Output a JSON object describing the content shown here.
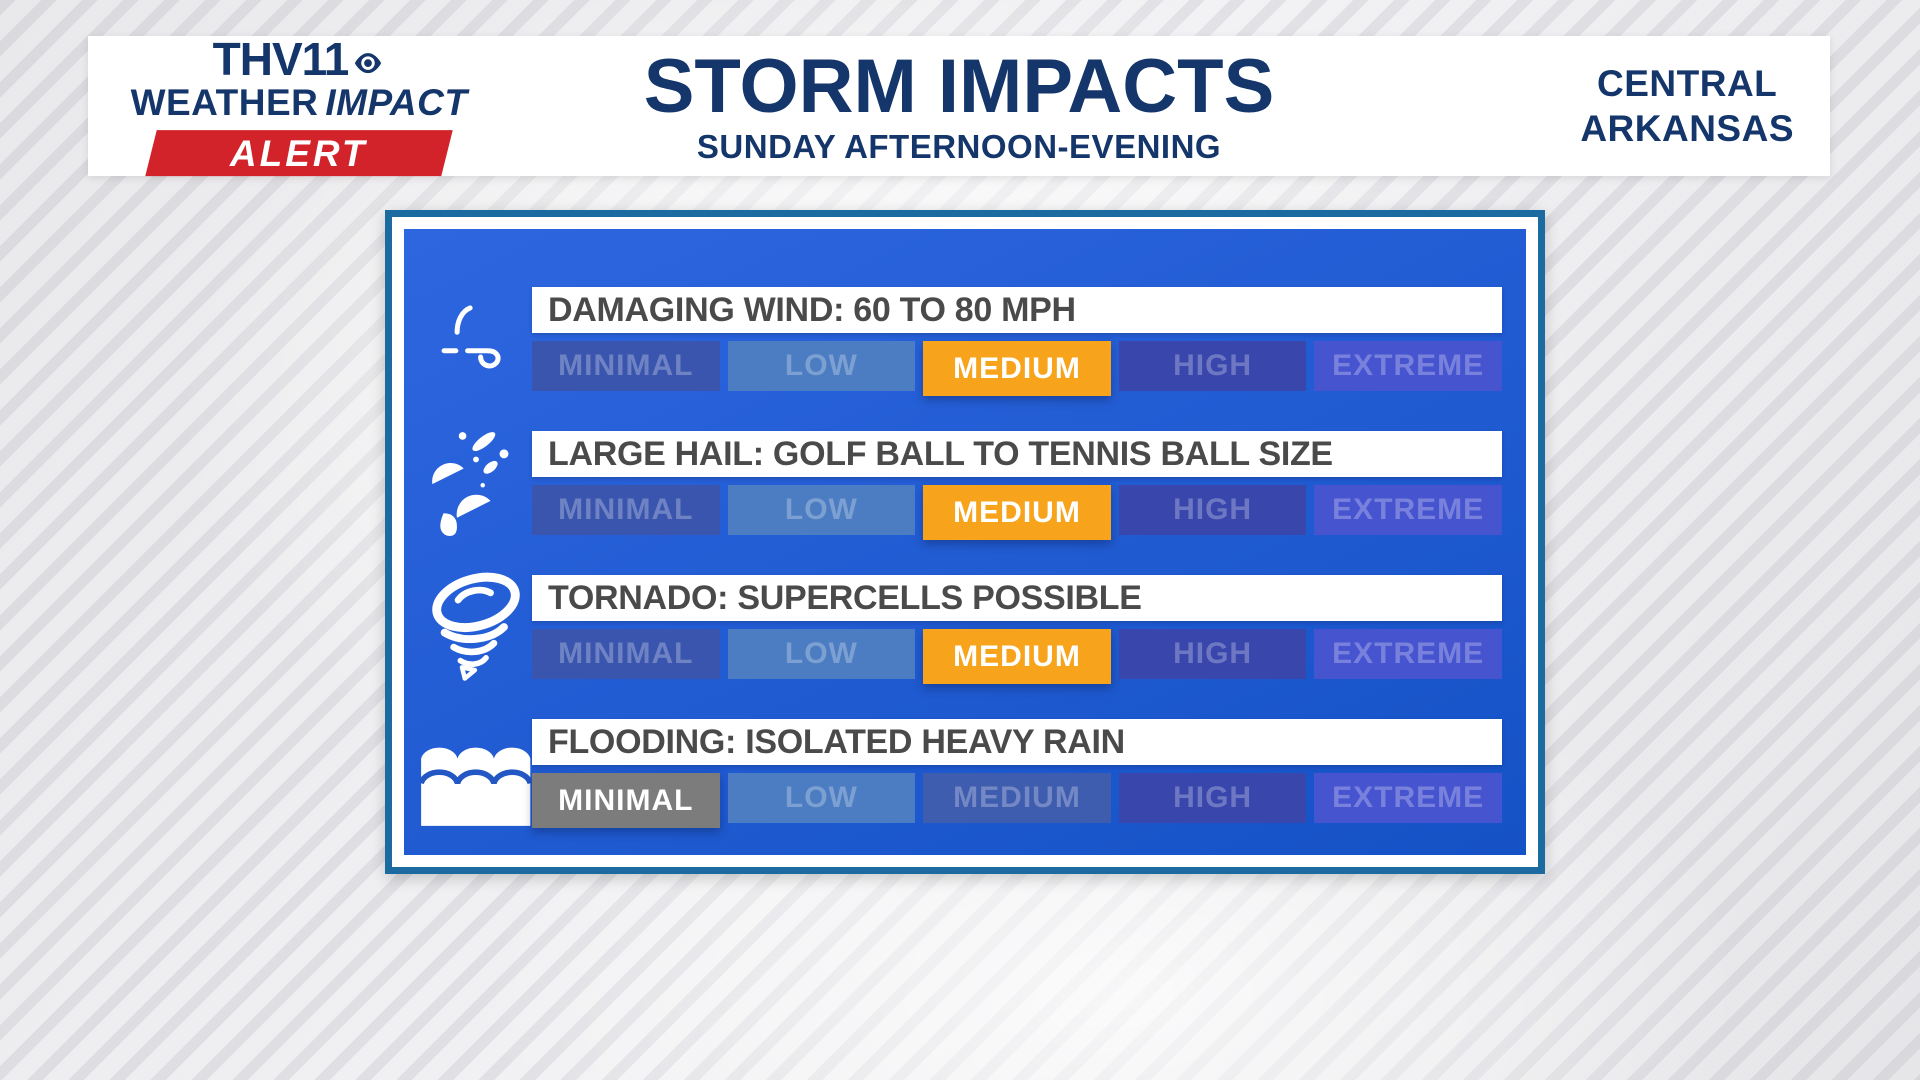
{
  "header": {
    "logo": {
      "station": "THV11",
      "brand_weather": "WEATHER",
      "brand_impact": "IMPACT",
      "alert": "ALERT"
    },
    "title": "STORM IMPACTS",
    "subtitle": "SUNDAY AFTERNOON-EVENING",
    "region_line1": "CENTRAL",
    "region_line2": "ARKANSAS"
  },
  "scale_levels": [
    "MINIMAL",
    "LOW",
    "MEDIUM",
    "HIGH",
    "EXTREME"
  ],
  "hazards": [
    {
      "icon": "wind-icon",
      "label": "DAMAGING WIND: 60 TO 80 MPH",
      "rating": "MEDIUM"
    },
    {
      "icon": "hail-icon",
      "label": "LARGE HAIL: GOLF BALL TO TENNIS BALL SIZE",
      "rating": "MEDIUM"
    },
    {
      "icon": "tornado-icon",
      "label": "TORNADO: SUPERCELLS POSSIBLE",
      "rating": "MEDIUM"
    },
    {
      "icon": "flood-icon",
      "label": "FLOODING: ISOLATED HEAVY RAIN",
      "rating": "MINIMAL"
    }
  ],
  "colors": {
    "navy": "#14366B",
    "alert_red": "#D2232A",
    "label_gray": "#4A4A4A",
    "border_teal": "#1C6BA0",
    "panel_top": "#2E66E0",
    "panel_bottom": "#1552C6",
    "cells": {
      "MINIMAL": "#3A55AE",
      "LOW": "#4C7DC2",
      "MEDIUM": "#3F5DAE",
      "HIGH": "#3947AC",
      "EXTREME": "#4754D0"
    },
    "selected": {
      "MEDIUM": "#F7A41C",
      "MINIMAL": "#7C7C7C"
    }
  },
  "chart_data": {
    "type": "table",
    "title": "STORM IMPACTS",
    "subtitle": "SUNDAY AFTERNOON-EVENING",
    "region": "CENTRAL ARKANSAS",
    "scale": [
      "MINIMAL",
      "LOW",
      "MEDIUM",
      "HIGH",
      "EXTREME"
    ],
    "rows": [
      {
        "hazard": "DAMAGING WIND",
        "detail": "60 TO 80 MPH",
        "rating": "MEDIUM",
        "rating_index": 2
      },
      {
        "hazard": "LARGE HAIL",
        "detail": "GOLF BALL TO TENNIS BALL SIZE",
        "rating": "MEDIUM",
        "rating_index": 2
      },
      {
        "hazard": "TORNADO",
        "detail": "SUPERCELLS POSSIBLE",
        "rating": "MEDIUM",
        "rating_index": 2
      },
      {
        "hazard": "FLOODING",
        "detail": "ISOLATED HEAVY RAIN",
        "rating": "MINIMAL",
        "rating_index": 0
      }
    ]
  }
}
